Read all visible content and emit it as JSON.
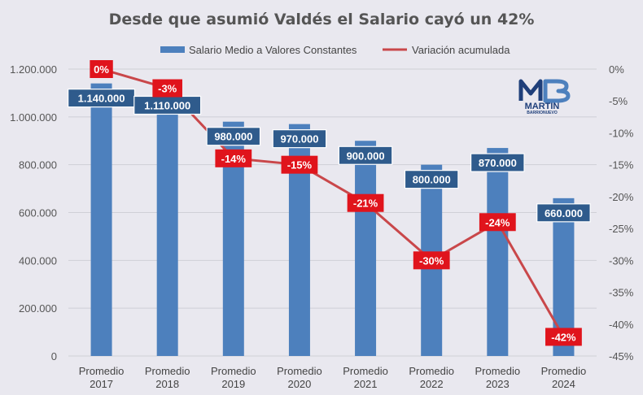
{
  "chart_data": {
    "type": "bar",
    "title": "Desde que asumió Valdés el Salario cayó un 42%",
    "categories": [
      "Promedio 2017",
      "Promedio 2018",
      "Promedio 2019",
      "Promedio 2020",
      "Promedio 2021",
      "Promedio 2022",
      "Promedio 2023",
      "Promedio 2024"
    ],
    "category_lines": [
      [
        "Promedio",
        "2017"
      ],
      [
        "Promedio",
        "2018"
      ],
      [
        "Promedio",
        "2019"
      ],
      [
        "Promedio",
        "2020"
      ],
      [
        "Promedio",
        "2021"
      ],
      [
        "Promedio",
        "2022"
      ],
      [
        "Promedio",
        "2023"
      ],
      [
        "Promedio",
        "2024"
      ]
    ],
    "series": [
      {
        "name": "Salario Medio a Valores Constantes",
        "type": "bar",
        "axis": "left",
        "color": "#4d80bd",
        "values": [
          1140000,
          1110000,
          980000,
          970000,
          900000,
          800000,
          870000,
          660000
        ],
        "labels": [
          "1.140.000",
          "1.110.000",
          "980.000",
          "970.000",
          "900.000",
          "800.000",
          "870.000",
          "660.000"
        ]
      },
      {
        "name": "Variación acumulada",
        "type": "line",
        "axis": "right",
        "color": "#c9474a",
        "values": [
          0,
          -3,
          -14,
          -15,
          -21,
          -30,
          -24,
          -42
        ],
        "labels": [
          "0%",
          "-3%",
          "-14%",
          "-15%",
          "-21%",
          "-30%",
          "-24%",
          "-42%"
        ]
      }
    ],
    "ylim_left": [
      0,
      1200000
    ],
    "yticks_left": [
      "0",
      "200.000",
      "400.000",
      "600.000",
      "800.000",
      "1.000.000",
      "1.200.000"
    ],
    "ylim_right": [
      -45,
      0
    ],
    "yticks_right": [
      "-45%",
      "-40%",
      "-35%",
      "-30%",
      "-25%",
      "-20%",
      "-15%",
      "-10%",
      "-5%",
      "0%"
    ],
    "grid": true,
    "legend_position": "top"
  },
  "logo": {
    "line1": "MARTIN",
    "line2": "BARRIONUEVO"
  }
}
